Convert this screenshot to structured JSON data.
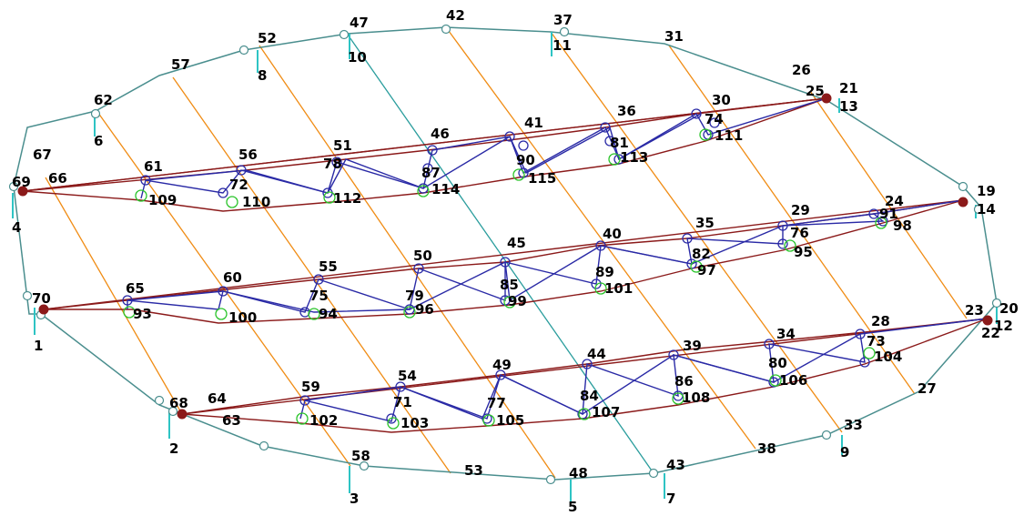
{
  "colors": {
    "background": "#ffffff",
    "outline": "#4a8e8e",
    "support": "#2ec4c4",
    "orange": "#f08c14",
    "truss_chord": "#8b1a1a",
    "web": "#2a2aa6",
    "green_node": "#2ac42a",
    "node_label": "#000000",
    "anchor_fill": "#8b1a1a"
  },
  "nodes": [
    {
      "id": "1",
      "label": "1"
    },
    {
      "id": "2",
      "label": "2"
    },
    {
      "id": "3",
      "label": "3"
    },
    {
      "id": "4",
      "label": "4"
    },
    {
      "id": "5",
      "label": "5"
    },
    {
      "id": "6",
      "label": "6"
    },
    {
      "id": "7",
      "label": "7"
    },
    {
      "id": "8",
      "label": "8"
    },
    {
      "id": "9",
      "label": "9"
    },
    {
      "id": "10",
      "label": "10"
    },
    {
      "id": "11",
      "label": "11"
    },
    {
      "id": "12",
      "label": "12"
    },
    {
      "id": "13",
      "label": "13"
    },
    {
      "id": "14",
      "label": "14"
    },
    {
      "id": "19",
      "label": "19"
    },
    {
      "id": "20",
      "label": "20"
    },
    {
      "id": "21",
      "label": "21"
    },
    {
      "id": "22",
      "label": "22"
    },
    {
      "id": "23",
      "label": "23"
    },
    {
      "id": "24",
      "label": "24"
    },
    {
      "id": "25",
      "label": "25"
    },
    {
      "id": "26",
      "label": "26"
    },
    {
      "id": "27",
      "label": "27"
    },
    {
      "id": "28",
      "label": "28"
    },
    {
      "id": "29",
      "label": "29"
    },
    {
      "id": "30",
      "label": "30"
    },
    {
      "id": "31",
      "label": "31"
    },
    {
      "id": "33",
      "label": "33"
    },
    {
      "id": "34",
      "label": "34"
    },
    {
      "id": "35",
      "label": "35"
    },
    {
      "id": "36",
      "label": "36"
    },
    {
      "id": "37",
      "label": "37"
    },
    {
      "id": "38",
      "label": "38"
    },
    {
      "id": "39",
      "label": "39"
    },
    {
      "id": "40",
      "label": "40"
    },
    {
      "id": "41",
      "label": "41"
    },
    {
      "id": "42",
      "label": "42"
    },
    {
      "id": "43",
      "label": "43"
    },
    {
      "id": "44",
      "label": "44"
    },
    {
      "id": "45",
      "label": "45"
    },
    {
      "id": "46",
      "label": "46"
    },
    {
      "id": "47",
      "label": "47"
    },
    {
      "id": "48",
      "label": "48"
    },
    {
      "id": "49",
      "label": "49"
    },
    {
      "id": "50",
      "label": "50"
    },
    {
      "id": "51",
      "label": "51"
    },
    {
      "id": "52",
      "label": "52"
    },
    {
      "id": "53",
      "label": "53"
    },
    {
      "id": "54",
      "label": "54"
    },
    {
      "id": "55",
      "label": "55"
    },
    {
      "id": "56",
      "label": "56"
    },
    {
      "id": "57",
      "label": "57"
    },
    {
      "id": "58",
      "label": "58"
    },
    {
      "id": "59",
      "label": "59"
    },
    {
      "id": "60",
      "label": "60"
    },
    {
      "id": "61",
      "label": "61"
    },
    {
      "id": "62",
      "label": "62"
    },
    {
      "id": "63",
      "label": "63"
    },
    {
      "id": "64",
      "label": "64"
    },
    {
      "id": "65",
      "label": "65"
    },
    {
      "id": "66",
      "label": "66"
    },
    {
      "id": "67",
      "label": "67"
    },
    {
      "id": "68",
      "label": "68"
    },
    {
      "id": "69",
      "label": "69"
    },
    {
      "id": "70",
      "label": "70"
    },
    {
      "id": "71",
      "label": "71"
    },
    {
      "id": "72",
      "label": "72"
    },
    {
      "id": "73",
      "label": "73"
    },
    {
      "id": "74",
      "label": "74"
    },
    {
      "id": "75",
      "label": "75"
    },
    {
      "id": "76",
      "label": "76"
    },
    {
      "id": "77",
      "label": "77"
    },
    {
      "id": "78",
      "label": "78"
    },
    {
      "id": "79",
      "label": "79"
    },
    {
      "id": "80",
      "label": "80"
    },
    {
      "id": "81",
      "label": "81"
    },
    {
      "id": "82",
      "label": "82"
    },
    {
      "id": "84",
      "label": "84"
    },
    {
      "id": "85",
      "label": "85"
    },
    {
      "id": "86",
      "label": "86"
    },
    {
      "id": "87",
      "label": "87"
    },
    {
      "id": "89",
      "label": "89"
    },
    {
      "id": "90",
      "label": "90"
    },
    {
      "id": "91",
      "label": "91"
    },
    {
      "id": "93",
      "label": "93"
    },
    {
      "id": "94",
      "label": "94"
    },
    {
      "id": "95",
      "label": "95"
    },
    {
      "id": "96",
      "label": "96"
    },
    {
      "id": "97",
      "label": "97"
    },
    {
      "id": "98",
      "label": "98"
    },
    {
      "id": "99",
      "label": "99"
    },
    {
      "id": "100",
      "label": "100"
    },
    {
      "id": "101",
      "label": "101"
    },
    {
      "id": "102",
      "label": "102"
    },
    {
      "id": "103",
      "label": "103"
    },
    {
      "id": "104",
      "label": "104"
    },
    {
      "id": "105",
      "label": "105"
    },
    {
      "id": "106",
      "label": "106"
    },
    {
      "id": "107",
      "label": "107"
    },
    {
      "id": "108",
      "label": "108"
    },
    {
      "id": "109",
      "label": "109"
    },
    {
      "id": "110",
      "label": "110"
    },
    {
      "id": "111",
      "label": "111"
    },
    {
      "id": "112",
      "label": "112"
    },
    {
      "id": "113",
      "label": "113"
    },
    {
      "id": "114",
      "label": "114"
    },
    {
      "id": "115",
      "label": "115"
    }
  ]
}
